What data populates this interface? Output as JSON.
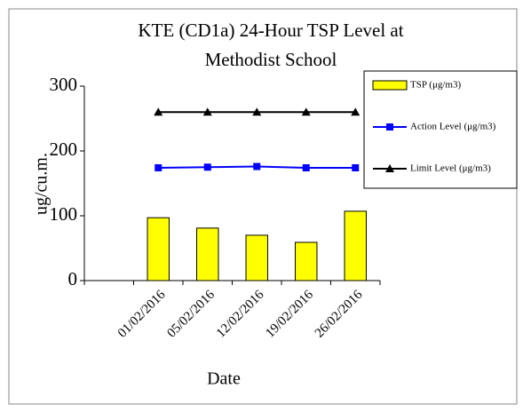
{
  "chart_data": {
    "type": "bar",
    "title": "KTE (CD1a) 24-Hour TSP Level at Methodist School",
    "x_label": "Date",
    "y_label": "ug/cu.m.",
    "categories": [
      null,
      "01/02/2016",
      "05/02/2016",
      "12/02/2016",
      "19/02/2016",
      "26/02/2016"
    ],
    "series": [
      {
        "name": "TSP (μg/m3)",
        "type": "bar",
        "color": "#ffff00",
        "values": [
          null,
          97,
          81,
          70,
          59,
          107
        ]
      },
      {
        "name": "Action Level (μg/m3)",
        "type": "line",
        "marker": "square",
        "color": "#0000ff",
        "values": [
          null,
          174,
          175,
          176,
          174,
          174
        ]
      },
      {
        "name": "Limit Level (μg/m3)",
        "type": "line",
        "marker": "triangle",
        "color": "#000000",
        "values": [
          null,
          260,
          260,
          260,
          260,
          260
        ]
      }
    ],
    "ylim": [
      0,
      300
    ],
    "yticks": [
      0,
      100,
      200,
      300
    ],
    "grid": false,
    "legend": "right"
  }
}
